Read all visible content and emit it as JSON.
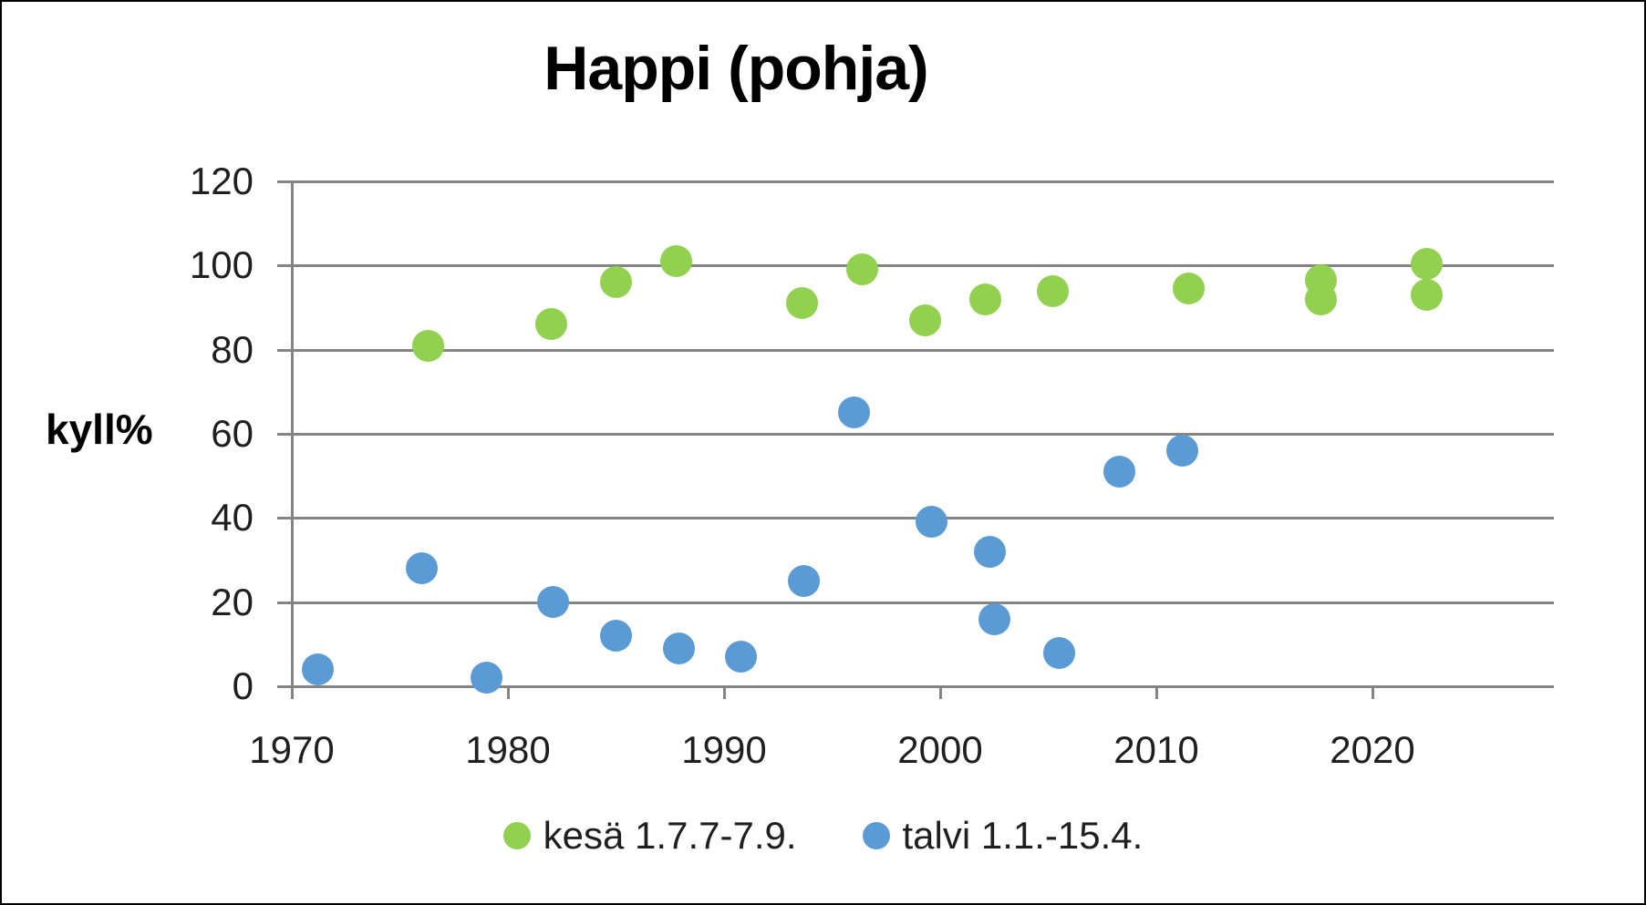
{
  "title": "Happi (pohja)",
  "y_axis_label": "kyll%",
  "legend": [
    {
      "label": "kesä 1.7.7-7.9.",
      "color": "#92d050"
    },
    {
      "label": "talvi 1.1.-15.4.",
      "color": "#5b9bd5"
    }
  ],
  "colors": {
    "kesa_green": "#92d050",
    "talvi_blue": "#5b9bd5",
    "gridline_gray": "#848484",
    "text": "#1f1f1f",
    "border": "#000000",
    "background": "#ffffff"
  },
  "chart_data": {
    "type": "scatter",
    "title": "Happi (pohja)",
    "xlabel": "",
    "ylabel": "kyll%",
    "xlim": [
      1970,
      2028.4
    ],
    "ylim": [
      0,
      120
    ],
    "x_ticks": [
      1970,
      1980,
      1990,
      2000,
      2010,
      2020
    ],
    "y_ticks": [
      0,
      20,
      40,
      60,
      80,
      100,
      120
    ],
    "grid": true,
    "legend_position": "bottom",
    "marker": "circle",
    "series": [
      {
        "name": "kesä 1.7.7-7.9.",
        "color": "#92d050",
        "points": [
          {
            "x": 1976.3,
            "y": 81
          },
          {
            "x": 1982.0,
            "y": 86
          },
          {
            "x": 1985.0,
            "y": 96
          },
          {
            "x": 1987.8,
            "y": 101
          },
          {
            "x": 1993.6,
            "y": 91
          },
          {
            "x": 1996.4,
            "y": 99
          },
          {
            "x": 1999.3,
            "y": 87
          },
          {
            "x": 2002.1,
            "y": 92
          },
          {
            "x": 2005.2,
            "y": 94
          },
          {
            "x": 2011.5,
            "y": 94.5
          },
          {
            "x": 2017.6,
            "y": 96.5
          },
          {
            "x": 2017.6,
            "y": 92
          },
          {
            "x": 2022.5,
            "y": 100.5
          },
          {
            "x": 2022.5,
            "y": 93
          }
        ]
      },
      {
        "name": "talvi 1.1.-15.4.",
        "color": "#5b9bd5",
        "points": [
          {
            "x": 1971.2,
            "y": 4
          },
          {
            "x": 1976.0,
            "y": 28
          },
          {
            "x": 1979.0,
            "y": 2
          },
          {
            "x": 1982.1,
            "y": 20
          },
          {
            "x": 1985.0,
            "y": 12
          },
          {
            "x": 1987.9,
            "y": 9
          },
          {
            "x": 1990.8,
            "y": 7
          },
          {
            "x": 1993.7,
            "y": 25
          },
          {
            "x": 1996.0,
            "y": 65
          },
          {
            "x": 1999.6,
            "y": 39
          },
          {
            "x": 2002.3,
            "y": 32
          },
          {
            "x": 2002.5,
            "y": 16
          },
          {
            "x": 2005.5,
            "y": 8
          },
          {
            "x": 2008.3,
            "y": 51
          },
          {
            "x": 2011.2,
            "y": 56
          }
        ]
      }
    ]
  }
}
